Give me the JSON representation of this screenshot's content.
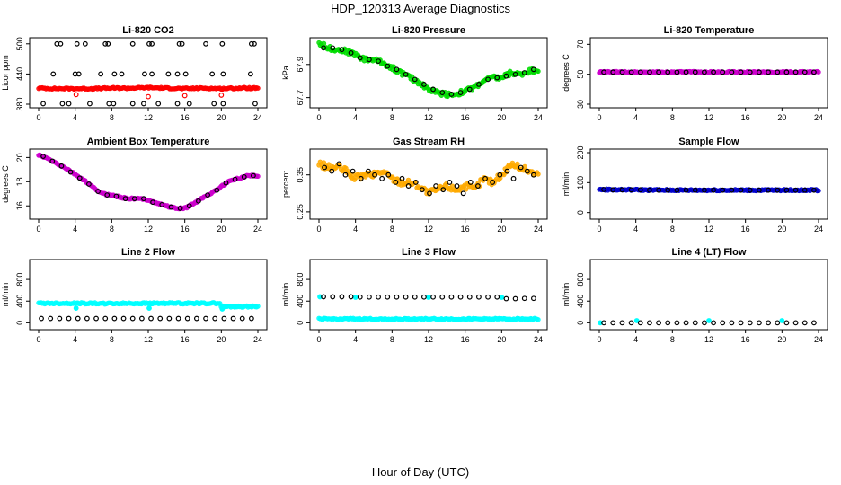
{
  "page": {
    "title": "HDP_120313  Average Diagnostics",
    "x_axis_label": "Hour of Day (UTC)"
  },
  "chart_data": [
    {
      "id": "co2",
      "type": "scatter",
      "title": "Li-820 CO2",
      "ylabel": "Licor ppm",
      "xlim": [
        0,
        24
      ],
      "ylim": [
        380,
        505
      ],
      "x_ticks": [
        0,
        4,
        8,
        12,
        16,
        20,
        24
      ],
      "y_ticks": [
        380,
        440,
        500
      ],
      "series": [
        {
          "color": "#000000",
          "marker": "open-circle",
          "x": [
            2.0,
            2.4,
            4.2,
            5.1,
            7.3,
            7.6,
            10.3,
            12.1,
            12.4,
            15.4,
            15.7,
            18.3,
            20.1,
            23.3,
            23.6
          ],
          "y": [
            500,
            500,
            500,
            500,
            500,
            500,
            500,
            500,
            500,
            500,
            500,
            500,
            500,
            500,
            500
          ]
        },
        {
          "color": "#000000",
          "marker": "open-circle",
          "x": [
            1.6,
            4.0,
            4.4,
            6.8,
            8.3,
            9.1,
            11.6,
            12.4,
            14.2,
            15.2,
            16.1,
            19.0,
            20.2,
            23.2
          ],
          "y": [
            440,
            440,
            440,
            440,
            440,
            440,
            440,
            440,
            440,
            440,
            440,
            440,
            440,
            440
          ]
        },
        {
          "color": "#000000",
          "marker": "open-circle",
          "x": [
            0.5,
            2.6,
            3.3,
            5.6,
            7.7,
            8.2,
            10.3,
            11.5,
            13.1,
            15.2,
            16.5,
            19.2,
            20.2,
            23.7
          ],
          "y": [
            381,
            381,
            381,
            381,
            381,
            381,
            381,
            381,
            381,
            381,
            381,
            381,
            381,
            381
          ]
        },
        {
          "color": "#ff0000",
          "marker": "dense-line",
          "x": [
            0,
            2,
            4,
            6,
            8,
            10,
            12,
            14,
            16,
            18,
            20,
            22,
            24
          ],
          "y": [
            412,
            411,
            411,
            411,
            412,
            412,
            413,
            412,
            411,
            412,
            411,
            412,
            412
          ]
        },
        {
          "color": "#ff0000",
          "marker": "open-circle",
          "x": [
            4.1,
            12.0,
            16.0,
            20.0
          ],
          "y": [
            399,
            395,
            397,
            398
          ]
        }
      ]
    },
    {
      "id": "pressure",
      "type": "scatter",
      "title": "Li-820 Pressure",
      "ylabel": "kPa",
      "xlim": [
        0,
        24
      ],
      "ylim": [
        67.66,
        68.04
      ],
      "x_ticks": [
        0,
        4,
        8,
        12,
        16,
        20,
        24
      ],
      "y_ticks": [
        67.7,
        67.9
      ],
      "series": [
        {
          "color": "#00dd00",
          "marker": "dense-line",
          "x": [
            0,
            1,
            2,
            3,
            4,
            5,
            6,
            7,
            8,
            9,
            10,
            11,
            12,
            13,
            14,
            15,
            16,
            17,
            18,
            19,
            20,
            21,
            22,
            23,
            24
          ],
          "y": [
            68.03,
            68.0,
            67.99,
            67.98,
            67.96,
            67.93,
            67.93,
            67.91,
            67.88,
            67.85,
            67.82,
            67.79,
            67.75,
            67.73,
            67.72,
            67.72,
            67.74,
            67.76,
            67.8,
            67.82,
            67.82,
            67.85,
            67.84,
            67.86,
            67.87
          ]
        },
        {
          "color": "#000000",
          "marker": "open-circle",
          "x": [
            0.5,
            1.5,
            2.5,
            3.5,
            4.5,
            5.5,
            6.5,
            7.5,
            8.5,
            9.5,
            10.5,
            11.5,
            12.5,
            13.5,
            14.5,
            15.5,
            16.5,
            17.5,
            18.5,
            19.5,
            20.5,
            21.5,
            22.5,
            23.5
          ],
          "y": [
            68.0,
            68.0,
            67.99,
            67.97,
            67.94,
            67.93,
            67.92,
            67.89,
            67.87,
            67.84,
            67.81,
            67.78,
            67.75,
            67.73,
            67.72,
            67.73,
            67.75,
            67.78,
            67.81,
            67.82,
            67.83,
            67.84,
            67.85,
            67.87
          ]
        }
      ]
    },
    {
      "id": "li820temp",
      "type": "scatter",
      "title": "Li-820 Temperature",
      "ylabel": "degrees C",
      "xlim": [
        0,
        24
      ],
      "ylim": [
        30,
        72
      ],
      "x_ticks": [
        0,
        4,
        8,
        12,
        16,
        20,
        24
      ],
      "y_ticks": [
        30,
        50,
        70
      ],
      "series": [
        {
          "color": "#ff00ff",
          "marker": "filled-circle",
          "x": [
            0.1
          ],
          "y": [
            51.4
          ]
        },
        {
          "color": "#cc00cc",
          "marker": "dense-line",
          "x": [
            0,
            24
          ],
          "y": [
            51.4,
            51.4
          ]
        },
        {
          "color": "#000000",
          "marker": "open-circle",
          "x": [
            0.5,
            1.5,
            2.5,
            3.5,
            4.5,
            5.5,
            6.5,
            7.5,
            8.5,
            9.5,
            10.5,
            11.5,
            12.5,
            13.5,
            14.5,
            15.5,
            16.5,
            17.5,
            18.5,
            19.5,
            20.5,
            21.5,
            22.5,
            23.5
          ],
          "y": [
            51.4,
            51.4,
            51.4,
            51.4,
            51.4,
            51.4,
            51.4,
            51.4,
            51.4,
            51.4,
            51.4,
            51.4,
            51.4,
            51.4,
            51.4,
            51.4,
            51.4,
            51.4,
            51.4,
            51.4,
            51.4,
            51.4,
            51.4,
            51.4
          ]
        }
      ]
    },
    {
      "id": "boxtemp",
      "type": "scatter",
      "title": "Ambient Box Temperature",
      "ylabel": "degrees C",
      "xlim": [
        0,
        24
      ],
      "ylim": [
        15.2,
        20.4
      ],
      "x_ticks": [
        0,
        4,
        8,
        12,
        16,
        20,
        24
      ],
      "y_ticks": [
        16,
        18,
        20
      ],
      "series": [
        {
          "color": "#ff00ff",
          "marker": "filled-circle",
          "x": [
            0.1
          ],
          "y": [
            20.2
          ]
        },
        {
          "color": "#cc00cc",
          "marker": "dense-line",
          "x": [
            0,
            1,
            2,
            3,
            4,
            5,
            6,
            7,
            8,
            9,
            10,
            11,
            12,
            13,
            14,
            15,
            16,
            17,
            18,
            19,
            20,
            21,
            22,
            23,
            24
          ],
          "y": [
            20.2,
            19.9,
            19.5,
            19.1,
            18.6,
            18.1,
            17.5,
            17.0,
            16.9,
            16.7,
            16.6,
            16.6,
            16.5,
            16.2,
            16.0,
            15.8,
            15.8,
            16.2,
            16.7,
            17.1,
            17.6,
            18.1,
            18.3,
            18.5,
            18.5
          ]
        },
        {
          "color": "#000000",
          "marker": "open-circle",
          "x": [
            0.5,
            1.5,
            2.5,
            3.5,
            4.5,
            5.5,
            6.5,
            7.5,
            8.5,
            9.5,
            10.5,
            11.5,
            12.5,
            13.5,
            14.5,
            15.5,
            16.5,
            17.5,
            18.5,
            19.5,
            20.5,
            21.5,
            22.5,
            23.5
          ],
          "y": [
            20.1,
            19.7,
            19.3,
            18.8,
            18.3,
            17.8,
            17.2,
            16.9,
            16.8,
            16.6,
            16.6,
            16.6,
            16.3,
            16.1,
            15.9,
            15.8,
            16.0,
            16.4,
            16.9,
            17.3,
            17.9,
            18.2,
            18.4,
            18.5
          ]
        }
      ]
    },
    {
      "id": "rh",
      "type": "scatter",
      "title": "Gas Stream RH",
      "ylabel": "percent",
      "xlim": [
        0,
        24
      ],
      "ylim": [
        0.24,
        0.41
      ],
      "x_ticks": [
        0,
        4,
        8,
        12,
        16,
        20,
        24
      ],
      "y_ticks": [
        0.25,
        0.35
      ],
      "series": [
        {
          "color": "#ffaa00",
          "marker": "dense-line",
          "x": [
            0,
            1,
            2,
            3,
            4,
            5,
            6,
            7,
            8,
            9,
            10,
            11,
            12,
            13,
            14,
            15,
            16,
            17,
            18,
            19,
            20,
            21,
            22,
            23,
            24
          ],
          "y": [
            0.38,
            0.37,
            0.37,
            0.36,
            0.34,
            0.35,
            0.35,
            0.36,
            0.34,
            0.33,
            0.33,
            0.32,
            0.3,
            0.31,
            0.32,
            0.31,
            0.32,
            0.31,
            0.34,
            0.33,
            0.35,
            0.38,
            0.37,
            0.36,
            0.35
          ]
        },
        {
          "color": "#000000",
          "marker": "open-circle",
          "x": [
            0.6,
            1.4,
            2.2,
            2.9,
            3.7,
            4.6,
            5.4,
            6.1,
            6.9,
            7.6,
            8.4,
            9.1,
            9.8,
            10.6,
            11.3,
            12.1,
            12.8,
            13.6,
            14.3,
            15.1,
            15.8,
            16.6,
            17.4,
            18.2,
            19.0,
            19.8,
            20.6,
            21.3,
            22.1,
            22.8,
            23.5
          ],
          "y": [
            0.37,
            0.36,
            0.38,
            0.35,
            0.36,
            0.34,
            0.36,
            0.35,
            0.34,
            0.35,
            0.33,
            0.34,
            0.32,
            0.33,
            0.31,
            0.3,
            0.32,
            0.31,
            0.33,
            0.32,
            0.3,
            0.33,
            0.32,
            0.34,
            0.33,
            0.35,
            0.36,
            0.34,
            0.37,
            0.36,
            0.35
          ]
        }
      ]
    },
    {
      "id": "sampleflow",
      "type": "scatter",
      "title": "Sample Flow",
      "ylabel": "ml/min",
      "xlim": [
        0,
        24
      ],
      "ylim": [
        -10,
        200
      ],
      "x_ticks": [
        0,
        4,
        8,
        12,
        16,
        20,
        24
      ],
      "y_ticks": [
        0,
        100,
        200
      ],
      "series": [
        {
          "color": "#0000cc",
          "marker": "dense-line",
          "x": [
            0,
            4,
            8,
            12,
            16,
            20,
            24
          ],
          "y": [
            77,
            76,
            75,
            75,
            75,
            75,
            75
          ]
        },
        {
          "color": "#000000",
          "marker": "open-circle",
          "x": [
            0.5,
            1.5,
            2.5,
            3.5,
            4.5,
            5.5,
            6.5,
            7.5,
            8.5,
            9.5,
            10.5,
            11.5,
            12.5,
            13.5,
            14.5,
            15.5,
            16.5,
            17.5,
            18.5,
            19.5,
            20.5,
            21.5,
            22.5,
            23.5
          ],
          "y": [
            77,
            76,
            76,
            76,
            76,
            75,
            75,
            75,
            75,
            75,
            75,
            75,
            75,
            75,
            75,
            75,
            75,
            75,
            75,
            75,
            75,
            75,
            75,
            75
          ]
        }
      ]
    },
    {
      "id": "line2",
      "type": "scatter",
      "title": "Line 2 Flow",
      "ylabel": "ml/min",
      "xlim": [
        0,
        24
      ],
      "ylim": [
        -60,
        1100
      ],
      "x_ticks": [
        0,
        4,
        8,
        12,
        16,
        20,
        24
      ],
      "y_ticks": [
        0,
        400,
        800
      ],
      "series": [
        {
          "color": "#00ffff",
          "marker": "dense-line",
          "x": [
            0,
            4,
            8,
            12,
            16,
            19.8,
            20,
            24
          ],
          "y": [
            360,
            360,
            355,
            360,
            360,
            360,
            300,
            300
          ]
        },
        {
          "color": "#00ffff",
          "marker": "filled-circle",
          "x": [
            4.1,
            12.1,
            20.1
          ],
          "y": [
            270,
            270,
            255
          ]
        },
        {
          "color": "#000000",
          "marker": "open-circle",
          "x": [
            0.3,
            1.3,
            2.3,
            3.3,
            4.3,
            5.3,
            6.3,
            7.3,
            8.3,
            9.3,
            10.3,
            11.3,
            12.3,
            13.3,
            14.3,
            15.3,
            16.3,
            17.3,
            18.3,
            19.3,
            20.3,
            21.3,
            22.3,
            23.3
          ],
          "y": [
            80,
            80,
            80,
            80,
            80,
            80,
            80,
            80,
            80,
            80,
            80,
            80,
            80,
            80,
            80,
            80,
            80,
            80,
            80,
            80,
            80,
            80,
            80,
            80
          ]
        }
      ]
    },
    {
      "id": "line3",
      "type": "scatter",
      "title": "Line 3 Flow",
      "ylabel": "ml/min",
      "xlim": [
        0,
        24
      ],
      "ylim": [
        -60,
        1100
      ],
      "x_ticks": [
        0,
        4,
        8,
        12,
        16,
        20,
        24
      ],
      "y_ticks": [
        0,
        400,
        800
      ],
      "series": [
        {
          "color": "#00ffff",
          "marker": "dense-line",
          "x": [
            0,
            24
          ],
          "y": [
            70,
            70
          ]
        },
        {
          "color": "#00ffff",
          "marker": "filled-circle",
          "x": [
            0.1,
            4.0,
            12.0,
            20.0
          ],
          "y": [
            480,
            470,
            470,
            470
          ]
        },
        {
          "color": "#000000",
          "marker": "open-circle",
          "x": [
            0.5,
            1.5,
            2.5,
            3.5,
            4.5,
            5.5,
            6.5,
            7.5,
            8.5,
            9.5,
            10.5,
            11.5,
            12.5,
            13.5,
            14.5,
            15.5,
            16.5,
            17.5,
            18.5,
            19.5,
            20.5,
            21.5,
            22.5,
            23.5
          ],
          "y": [
            480,
            480,
            480,
            480,
            475,
            475,
            475,
            475,
            475,
            475,
            475,
            475,
            475,
            475,
            475,
            475,
            475,
            475,
            475,
            475,
            445,
            445,
            450,
            450
          ]
        }
      ]
    },
    {
      "id": "line4",
      "type": "scatter",
      "title": "Line 4 (LT) Flow",
      "ylabel": "ml/min",
      "xlim": [
        0,
        24
      ],
      "ylim": [
        -60,
        1100
      ],
      "x_ticks": [
        0,
        4,
        8,
        12,
        16,
        20,
        24
      ],
      "y_ticks": [
        0,
        400,
        800
      ],
      "series": [
        {
          "color": "#00ffff",
          "marker": "filled-circle",
          "x": [
            0.1,
            4.1,
            12.0,
            20.0
          ],
          "y": [
            0,
            40,
            40,
            40
          ]
        },
        {
          "color": "#000000",
          "marker": "open-circle",
          "x": [
            0.5,
            1.5,
            2.5,
            3.5,
            4.5,
            5.5,
            6.5,
            7.5,
            8.5,
            9.5,
            10.5,
            11.5,
            12.5,
            13.5,
            14.5,
            15.5,
            16.5,
            17.5,
            18.5,
            19.5,
            20.5,
            21.5,
            22.5,
            23.5
          ],
          "y": [
            0,
            0,
            0,
            0,
            0,
            0,
            0,
            0,
            0,
            0,
            0,
            0,
            0,
            0,
            0,
            0,
            0,
            0,
            0,
            0,
            0,
            0,
            0,
            0
          ]
        }
      ]
    }
  ]
}
